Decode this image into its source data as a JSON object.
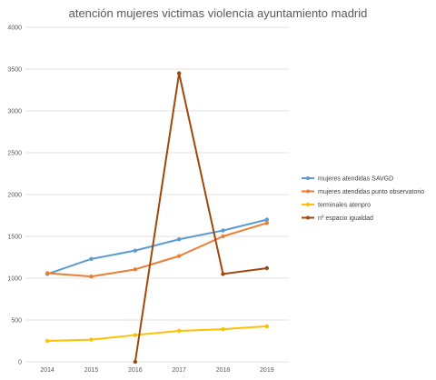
{
  "chart_data": {
    "type": "line",
    "title": "atención mujeres victimas violencia ayuntamiento madrid",
    "xlabel": "",
    "ylabel": "",
    "categories": [
      "2014",
      "2015",
      "2016",
      "2017",
      "2018",
      "2019"
    ],
    "ylim": [
      0,
      4000
    ],
    "yticks": [
      0,
      500,
      1000,
      1500,
      2000,
      2500,
      3000,
      3500,
      4000
    ],
    "grid": true,
    "legend_position": "right",
    "series": [
      {
        "name": "mujeres atendidas SAVGD",
        "color": "#5b9bd5",
        "values": [
          1050,
          1230,
          1330,
          1465,
          1570,
          1700
        ]
      },
      {
        "name": "mujeres atendidas punto observatorio",
        "color": "#ed7d31",
        "values": [
          1060,
          1020,
          1105,
          1265,
          1500,
          1660
        ]
      },
      {
        "name": "terminales atenpro",
        "color": "#ffc000",
        "values": [
          250,
          265,
          320,
          370,
          390,
          425
        ]
      },
      {
        "name": "nº espacio igualdad",
        "color": "#9e480e",
        "values": [
          null,
          null,
          0,
          3450,
          1050,
          1120
        ]
      }
    ]
  }
}
